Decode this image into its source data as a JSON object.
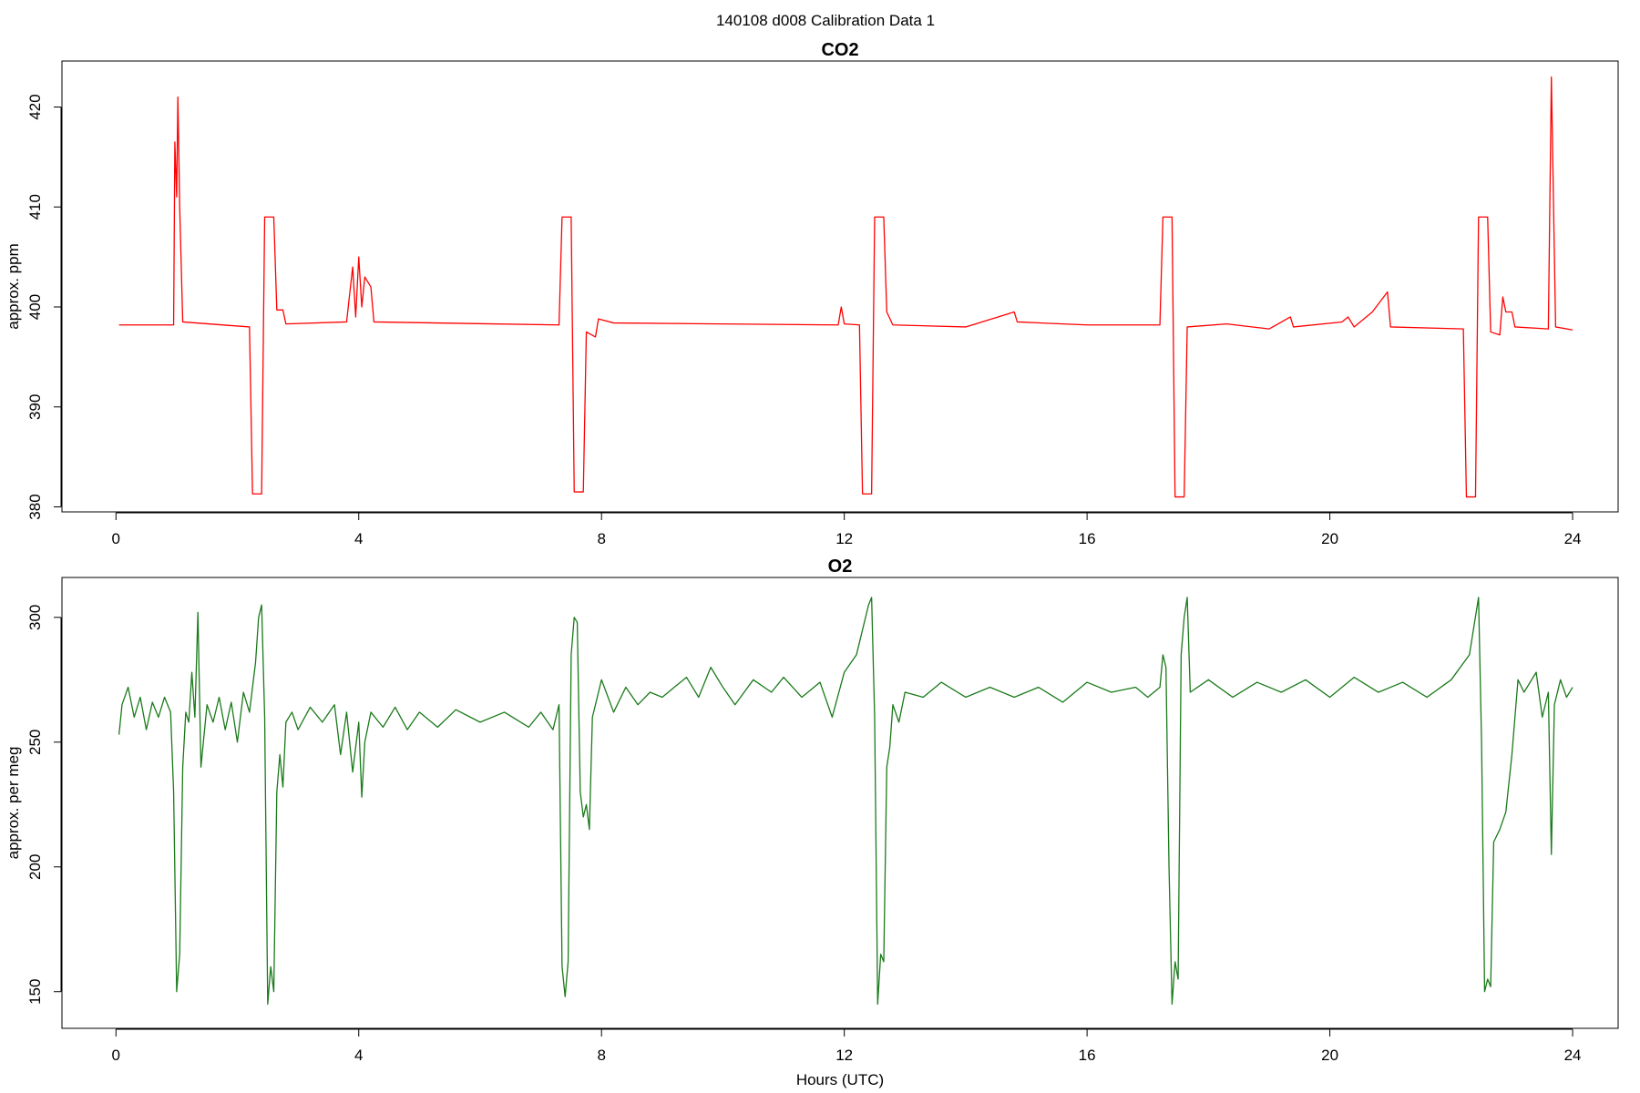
{
  "title": "140108   d008   Calibration Data 1",
  "chart_data": [
    {
      "type": "line",
      "title": "CO2",
      "ylabel": "approx. ppm",
      "color": "#ff0000",
      "xlim": [
        -0.89,
        24.75
      ],
      "xticks": [
        0,
        4,
        8,
        12,
        16,
        20,
        24
      ],
      "ylim": [
        379.5,
        424.6
      ],
      "yticks": [
        380,
        390,
        400,
        410,
        420
      ],
      "x": [
        0.05,
        0.95,
        0.97,
        1.0,
        1.02,
        1.05,
        1.1,
        2.2,
        2.25,
        2.4,
        2.45,
        2.6,
        2.65,
        2.75,
        2.8,
        3.8,
        3.9,
        3.95,
        4.0,
        4.05,
        4.1,
        4.2,
        4.25,
        7.3,
        7.35,
        7.5,
        7.55,
        7.7,
        7.75,
        7.9,
        7.95,
        8.2,
        11.9,
        11.95,
        12.0,
        12.25,
        12.3,
        12.45,
        12.5,
        12.65,
        12.7,
        12.8,
        14.0,
        14.8,
        14.85,
        16.0,
        17.2,
        17.25,
        17.4,
        17.45,
        17.6,
        17.65,
        18.3,
        19.0,
        19.35,
        19.4,
        20.2,
        20.3,
        20.4,
        20.7,
        20.95,
        21.0,
        22.2,
        22.25,
        22.4,
        22.45,
        22.6,
        22.65,
        22.8,
        22.85,
        22.9,
        23.0,
        23.05,
        23.6,
        23.65,
        23.72,
        24.0
      ],
      "values": [
        398.2,
        398.2,
        416.5,
        411,
        421,
        410,
        398.5,
        398,
        381.3,
        381.3,
        409,
        409,
        399.7,
        399.7,
        398.3,
        398.5,
        404,
        399,
        405,
        400,
        403,
        402,
        398.5,
        398.2,
        409,
        409,
        381.5,
        381.5,
        397.5,
        397,
        398.8,
        398.4,
        398.2,
        400,
        398.3,
        398.2,
        381.3,
        381.3,
        409,
        409,
        399.5,
        398.2,
        398,
        399.5,
        398.5,
        398.2,
        398.2,
        409,
        409,
        381,
        381,
        398,
        398.3,
        397.8,
        399,
        398,
        398.5,
        399,
        398,
        399.5,
        401.5,
        398,
        397.8,
        381,
        381,
        409,
        409,
        397.5,
        397.2,
        401,
        399.5,
        399.5,
        398,
        397.8,
        423,
        398,
        397.7
      ]
    },
    {
      "type": "line",
      "title": "O2",
      "ylabel": "approx. per meg",
      "xlabel": "Hours (UTC)",
      "color": "#1a7a1a",
      "xlim": [
        -0.89,
        24.75
      ],
      "xticks": [
        0,
        4,
        8,
        12,
        16,
        20,
        24
      ],
      "ylim": [
        135.3,
        316
      ],
      "yticks": [
        150,
        200,
        250,
        300
      ],
      "x": [
        0.05,
        0.1,
        0.2,
        0.3,
        0.4,
        0.5,
        0.6,
        0.7,
        0.8,
        0.9,
        0.95,
        1.0,
        1.05,
        1.1,
        1.15,
        1.2,
        1.25,
        1.3,
        1.35,
        1.4,
        1.5,
        1.6,
        1.7,
        1.8,
        1.9,
        2.0,
        2.1,
        2.2,
        2.3,
        2.35,
        2.4,
        2.45,
        2.5,
        2.55,
        2.6,
        2.65,
        2.7,
        2.75,
        2.8,
        2.9,
        3.0,
        3.2,
        3.4,
        3.6,
        3.7,
        3.8,
        3.9,
        4.0,
        4.05,
        4.1,
        4.2,
        4.4,
        4.6,
        4.8,
        5.0,
        5.3,
        5.6,
        6.0,
        6.4,
        6.8,
        7.0,
        7.2,
        7.3,
        7.35,
        7.4,
        7.45,
        7.5,
        7.55,
        7.6,
        7.65,
        7.7,
        7.75,
        7.8,
        7.85,
        8.0,
        8.2,
        8.4,
        8.6,
        8.8,
        9.0,
        9.2,
        9.4,
        9.6,
        9.8,
        10.0,
        10.2,
        10.5,
        10.8,
        11.0,
        11.3,
        11.6,
        11.8,
        12.0,
        12.2,
        12.4,
        12.45,
        12.5,
        12.55,
        12.6,
        12.65,
        12.7,
        12.75,
        12.8,
        12.9,
        13.0,
        13.3,
        13.6,
        14.0,
        14.4,
        14.8,
        15.2,
        15.6,
        16.0,
        16.4,
        16.8,
        17.0,
        17.2,
        17.25,
        17.3,
        17.35,
        17.4,
        17.45,
        17.5,
        17.55,
        17.6,
        17.65,
        17.7,
        18.0,
        18.4,
        18.8,
        19.2,
        19.6,
        20.0,
        20.4,
        20.8,
        21.2,
        21.6,
        22.0,
        22.3,
        22.45,
        22.5,
        22.55,
        22.6,
        22.65,
        22.7,
        22.8,
        22.9,
        23.0,
        23.1,
        23.2,
        23.4,
        23.5,
        23.6,
        23.65,
        23.7,
        23.8,
        23.9,
        24.0
      ],
      "values": [
        253,
        265,
        272,
        260,
        268,
        255,
        266,
        260,
        268,
        262,
        230,
        150,
        165,
        240,
        262,
        258,
        278,
        260,
        302,
        240,
        265,
        258,
        268,
        255,
        266,
        250,
        270,
        262,
        282,
        300,
        305,
        260,
        145,
        160,
        150,
        230,
        245,
        232,
        258,
        262,
        255,
        264,
        258,
        265,
        245,
        262,
        238,
        258,
        228,
        250,
        262,
        256,
        264,
        255,
        262,
        256,
        263,
        258,
        262,
        256,
        262,
        255,
        265,
        160,
        148,
        162,
        285,
        300,
        298,
        230,
        220,
        225,
        215,
        260,
        275,
        262,
        272,
        265,
        270,
        268,
        272,
        276,
        268,
        280,
        272,
        265,
        275,
        270,
        276,
        268,
        274,
        260,
        278,
        285,
        305,
        308,
        260,
        145,
        165,
        162,
        240,
        248,
        265,
        258,
        270,
        268,
        274,
        268,
        272,
        268,
        272,
        266,
        274,
        270,
        272,
        268,
        272,
        285,
        280,
        200,
        145,
        162,
        155,
        285,
        300,
        308,
        270,
        275,
        268,
        274,
        270,
        275,
        268,
        276,
        270,
        274,
        268,
        275,
        285,
        308,
        250,
        150,
        155,
        152,
        210,
        215,
        222,
        245,
        275,
        270,
        278,
        260,
        270,
        205,
        265,
        275,
        268,
        272
      ]
    }
  ]
}
